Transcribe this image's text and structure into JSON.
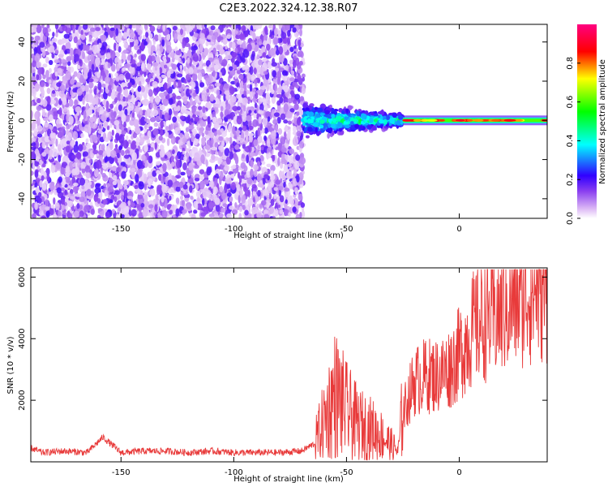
{
  "title": "C2E3.2022.324.12.38.R07",
  "colors": {
    "snr_line": "#e83a3a",
    "colormap": [
      "#ffffff",
      "#dcb8f5",
      "#8a3ff0",
      "#3000ff",
      "#00ffff",
      "#00ff00",
      "#ffff00",
      "#ff0000",
      "#ff0080"
    ]
  },
  "chart_data": [
    {
      "type": "heatmap",
      "xlabel": "Height of straight line (km)",
      "ylabel": "Frequency (Hz)",
      "xlim": [
        -190,
        39
      ],
      "ylim": [
        -50,
        49
      ],
      "xticks": [
        -150,
        -100,
        -50,
        0
      ],
      "yticks": [
        -40,
        -20,
        0,
        20,
        40
      ],
      "colorbar": {
        "label": "Normalized spectral amplitude",
        "range": [
          0.0,
          1.0
        ],
        "ticks": [
          0.0,
          0.2,
          0.4,
          0.6,
          0.8
        ]
      },
      "regions": [
        {
          "x": [
            -190,
            -69
          ],
          "y": [
            -50,
            49
          ],
          "amplitude": 0.12,
          "pattern": "broadband noise"
        },
        {
          "x": [
            -69,
            -25
          ],
          "y": [
            -10,
            10
          ],
          "amplitude": 0.35,
          "pattern": "scattered echo band"
        },
        {
          "x": [
            -25,
            39
          ],
          "y": [
            -2,
            2
          ],
          "amplitude": 0.9,
          "pattern": "narrow line near 0 Hz"
        }
      ]
    },
    {
      "type": "line",
      "xlabel": "Height of straight line (km)",
      "ylabel": "SNR (10 * v/v)",
      "xlim": [
        -190,
        39
      ],
      "ylim": [
        0,
        6300
      ],
      "xticks": [
        -150,
        -100,
        -50,
        0
      ],
      "yticks": [
        2000,
        4000,
        6000
      ],
      "series": [
        {
          "x": [
            -190,
            -185,
            -175,
            -165,
            -158,
            -150,
            -140,
            -130,
            -120,
            -110,
            -100,
            -90,
            -80,
            -70,
            -64,
            -60,
            -55,
            -50,
            -45,
            -40,
            -35,
            -30,
            -27,
            -25,
            -22,
            -20,
            -15,
            -10,
            -5,
            0,
            5,
            10,
            15,
            20,
            25,
            30,
            35,
            39
          ],
          "y": [
            450,
            300,
            350,
            300,
            800,
            300,
            350,
            350,
            300,
            350,
            300,
            300,
            300,
            350,
            600,
            1200,
            2000,
            1500,
            1100,
            1000,
            800,
            500,
            300,
            1600,
            2200,
            2600,
            2800,
            2800,
            3000,
            3500,
            4200,
            4600,
            4700,
            5000,
            5300,
            5500,
            5700,
            5700
          ]
        }
      ]
    }
  ]
}
